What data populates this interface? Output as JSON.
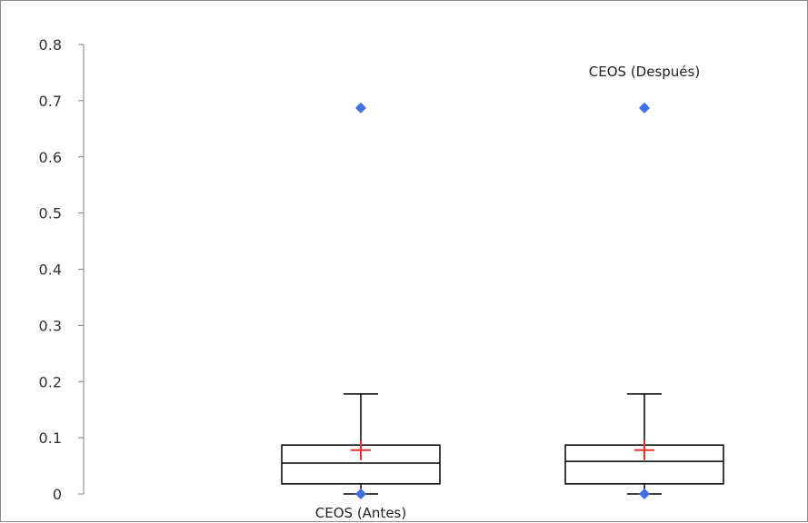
{
  "chart_data": {
    "type": "box",
    "ylim": [
      0,
      0.8
    ],
    "yticks": [
      0,
      0.1,
      0.2,
      0.3,
      0.4,
      0.5,
      0.6,
      0.7,
      0.8
    ],
    "ytick_labels": [
      "0",
      "0.1",
      "0.2",
      "0.3",
      "0.4",
      "0.5",
      "0.6",
      "0.7",
      "0.8"
    ],
    "grid": false,
    "colors": {
      "box": "#000000",
      "mean_marker": "#e8322d",
      "outlier": "#3f6fe0",
      "axis": "#7f7f7f"
    },
    "boxes": [
      {
        "label": "CEOS (Antes)",
        "label_position": "below",
        "whisker_low": 0.0,
        "q1": 0.018,
        "median": 0.055,
        "q3": 0.087,
        "whisker_high": 0.178,
        "mean": 0.078,
        "outliers": [
          0.0,
          0.687
        ]
      },
      {
        "label": "CEOS (Después)",
        "label_position": "above",
        "whisker_low": 0.0,
        "q1": 0.018,
        "median": 0.058,
        "q3": 0.087,
        "whisker_high": 0.178,
        "mean": 0.078,
        "outliers": [
          0.0,
          0.687
        ]
      }
    ]
  }
}
